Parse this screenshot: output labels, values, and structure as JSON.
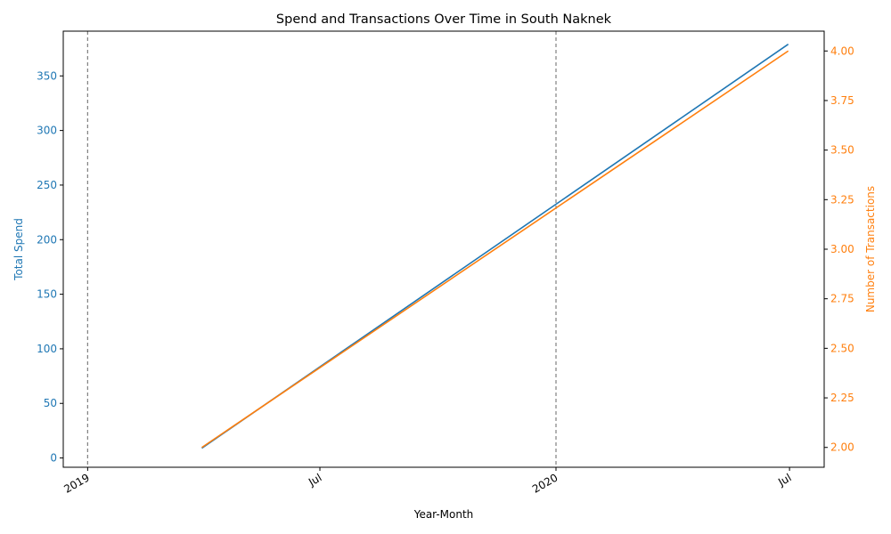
{
  "chart_data": {
    "type": "line",
    "title": "Spend and Transactions Over Time in South Naknek",
    "xlabel": "Year-Month",
    "ylabel_left": "Total Spend",
    "ylabel_right": "Number of Transactions",
    "x_ticks": [
      {
        "date": "2019-01-01",
        "label": "2019"
      },
      {
        "date": "2019-07-01",
        "label": "Jul"
      },
      {
        "date": "2020-01-01",
        "label": "2020"
      },
      {
        "date": "2020-07-01",
        "label": "Jul"
      }
    ],
    "year_boundaries": [
      "2019-01-01",
      "2020-01-01"
    ],
    "xlim": [
      "2018-12-13",
      "2020-07-28"
    ],
    "y_left": {
      "lim": [
        -8.5,
        391
      ],
      "ticks": [
        0,
        50,
        100,
        150,
        200,
        250,
        300,
        350
      ],
      "color": "#1f77b4"
    },
    "y_right": {
      "lim": [
        1.9,
        4.1
      ],
      "ticks": [
        "2.00",
        "2.25",
        "2.50",
        "2.75",
        "3.00",
        "3.25",
        "3.50",
        "3.75",
        "4.00"
      ],
      "color": "#ff7f0e"
    },
    "series": [
      {
        "axis": "left",
        "color": "#1f77b4",
        "points": [
          {
            "x": "2019-03-31",
            "y": 9
          },
          {
            "x": "2020-06-30",
            "y": 379
          }
        ]
      },
      {
        "axis": "right",
        "color": "#ff7f0e",
        "points": [
          {
            "x": "2019-03-31",
            "y": 2
          },
          {
            "x": "2020-06-30",
            "y": 4
          }
        ]
      }
    ]
  }
}
